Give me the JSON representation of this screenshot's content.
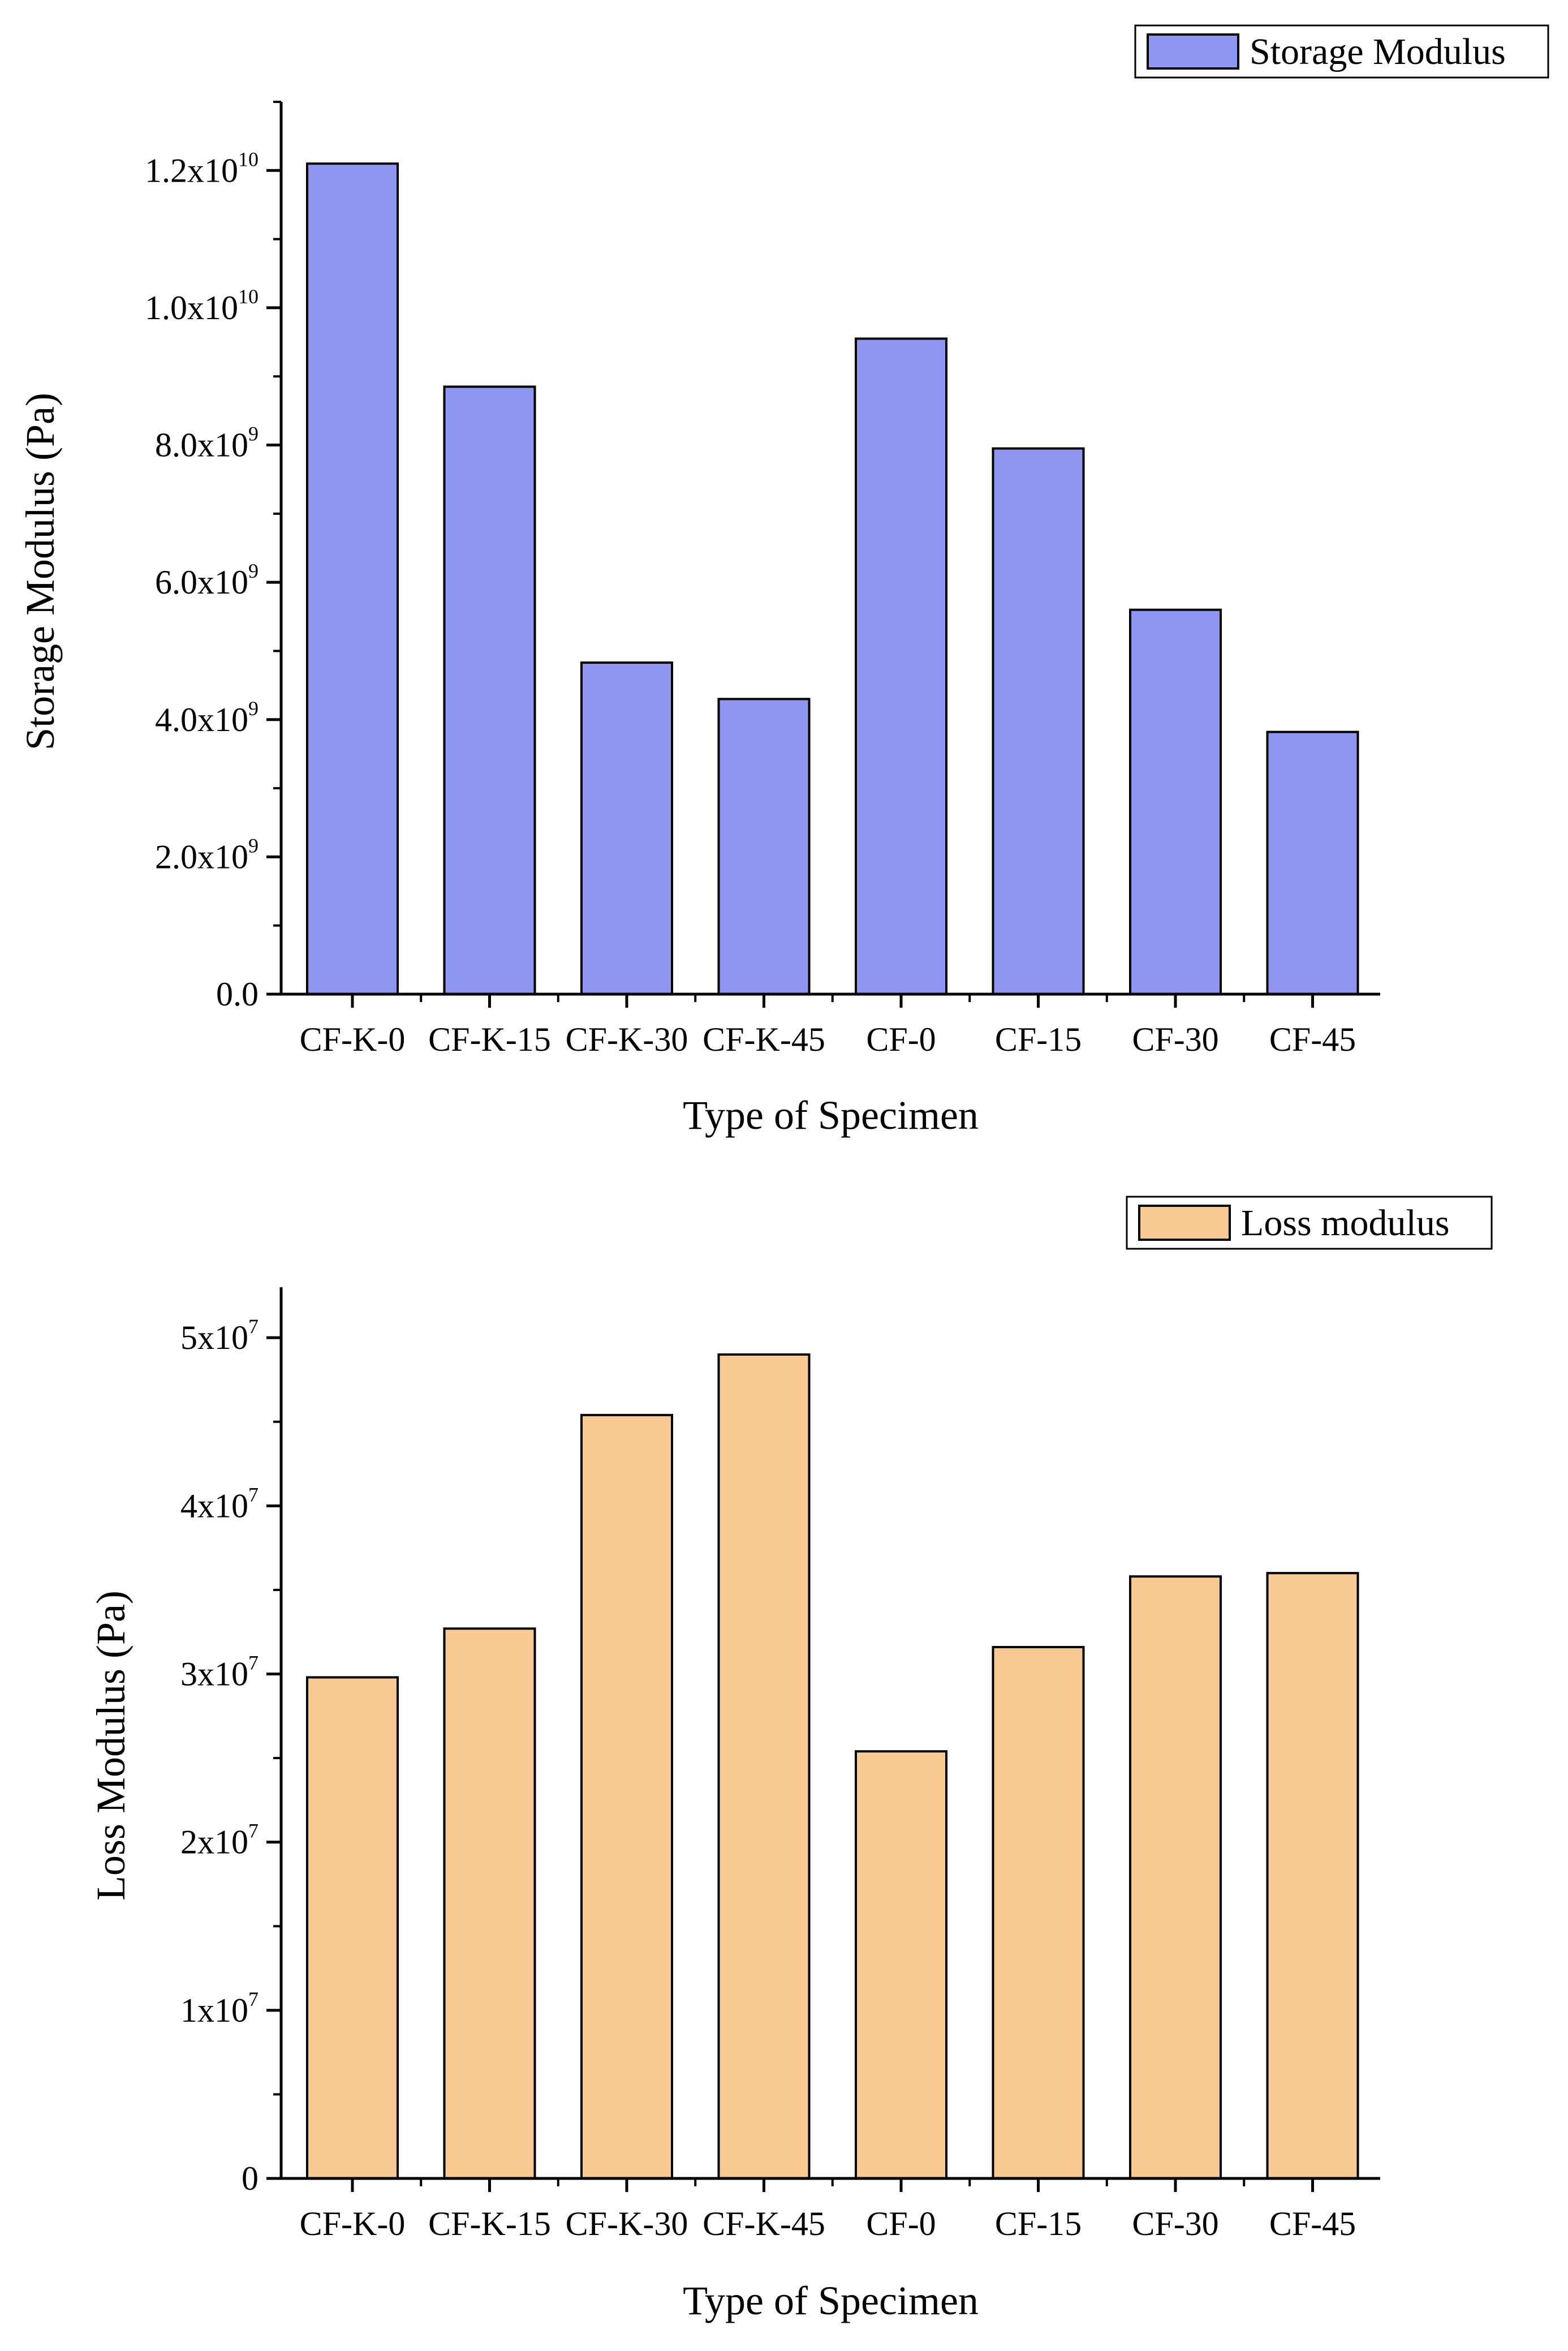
{
  "chart_data": [
    {
      "type": "bar",
      "title": "",
      "xlabel": "Type of Specimen",
      "ylabel": "Storage Modulus (Pa)",
      "categories": [
        "CF-K-0",
        "CF-K-15",
        "CF-K-30",
        "CF-K-45",
        "CF-0",
        "CF-15",
        "CF-30",
        "CF-45"
      ],
      "series": [
        {
          "name": "Storage Modulus",
          "color": "#8f96f2",
          "values": [
            12100000000.0,
            8850000000.0,
            4830000000.0,
            4300000000.0,
            9550000000.0,
            7950000000.0,
            5600000000.0,
            3820000000.0
          ]
        }
      ],
      "ylim": [
        0,
        13000000000.0
      ],
      "yticks": [
        {
          "value": 0,
          "mantissa": "0.0",
          "exp": ""
        },
        {
          "value": 2000000000.0,
          "mantissa": "2.0x10",
          "exp": "9"
        },
        {
          "value": 4000000000.0,
          "mantissa": "4.0x10",
          "exp": "9"
        },
        {
          "value": 6000000000.0,
          "mantissa": "6.0x10",
          "exp": "9"
        },
        {
          "value": 8000000000.0,
          "mantissa": "8.0x10",
          "exp": "9"
        },
        {
          "value": 10000000000.0,
          "mantissa": "1.0x10",
          "exp": "10"
        },
        {
          "value": 12000000000.0,
          "mantissa": "1.2x10",
          "exp": "10"
        }
      ],
      "minor_tick_step": 1000000000.0,
      "legend": {
        "position": "top-right",
        "label": "Storage Modulus"
      },
      "grid": false
    },
    {
      "type": "bar",
      "title": "",
      "xlabel": "Type of Specimen",
      "ylabel": "Loss Modulus (Pa)",
      "categories": [
        "CF-K-0",
        "CF-K-15",
        "CF-K-30",
        "CF-K-45",
        "CF-0",
        "CF-15",
        "CF-30",
        "CF-45"
      ],
      "series": [
        {
          "name": "Loss modulus",
          "color": "#f9c994",
          "values": [
            29800000.0,
            32700000.0,
            45400000.0,
            49000000.0,
            25400000.0,
            31600000.0,
            35800000.0,
            36000000.0
          ]
        }
      ],
      "ylim": [
        0,
        53000000.0
      ],
      "yticks": [
        {
          "value": 0,
          "mantissa": "0",
          "exp": ""
        },
        {
          "value": 10000000.0,
          "mantissa": "1x10",
          "exp": "7"
        },
        {
          "value": 20000000.0,
          "mantissa": "2x10",
          "exp": "7"
        },
        {
          "value": 30000000.0,
          "mantissa": "3x10",
          "exp": "7"
        },
        {
          "value": 40000000.0,
          "mantissa": "4x10",
          "exp": "7"
        },
        {
          "value": 50000000.0,
          "mantissa": "5x10",
          "exp": "7"
        }
      ],
      "minor_tick_step": 5000000.0,
      "legend": {
        "position": "top-right",
        "label": "Loss modulus"
      },
      "grid": false
    }
  ]
}
